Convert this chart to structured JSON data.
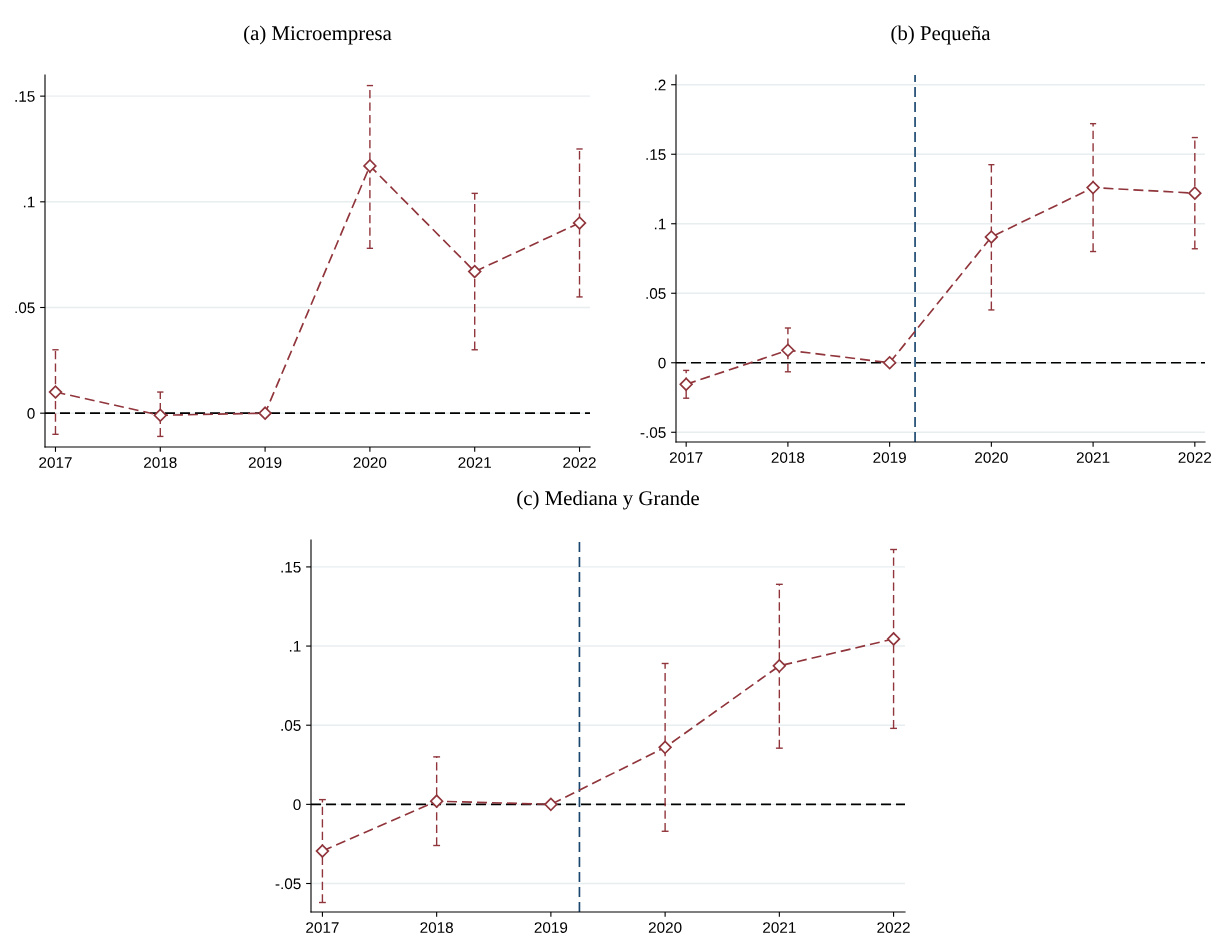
{
  "chart_data": [
    {
      "type": "line",
      "title": "(a) Microempresa",
      "x": [
        2017,
        2018,
        2019,
        2020,
        2021,
        2022
      ],
      "xlim": [
        2016.9,
        2022.1
      ],
      "xticks": [
        2017,
        2018,
        2019,
        2020,
        2021,
        2022
      ],
      "ylim": [
        -0.016,
        0.16
      ],
      "yticks": [
        {
          "value": 0,
          "label": "0"
        },
        {
          "value": 0.05,
          "label": ".05"
        },
        {
          "value": 0.1,
          "label": ".1"
        },
        {
          "value": 0.15,
          "label": ".15"
        }
      ],
      "grid": "y",
      "marker": "diamond",
      "line_style": "dashed",
      "series": [
        {
          "color": "#90353b",
          "values": [
            0.01,
            -0.001,
            0,
            0.117,
            0.067,
            0.09
          ],
          "errors": [
            [
              -0.01,
              0.03
            ],
            [
              -0.011,
              0.01
            ],
            null,
            [
              0.078,
              0.155
            ],
            [
              0.03,
              0.104
            ],
            [
              0.055,
              0.125
            ]
          ]
        }
      ],
      "ref_lines": [
        {
          "axis": "y",
          "value": 0,
          "color": "#000000",
          "line_style": "dashed"
        }
      ]
    },
    {
      "type": "line",
      "title": "(b) Pequeña",
      "x": [
        2017,
        2018,
        2019,
        2020,
        2021,
        2022
      ],
      "xlim": [
        2016.9,
        2022.1
      ],
      "xticks": [
        2017,
        2018,
        2019,
        2020,
        2021,
        2022
      ],
      "ylim": [
        -0.057,
        0.207
      ],
      "yticks": [
        {
          "value": -0.05,
          "label": "-.05"
        },
        {
          "value": 0,
          "label": "0"
        },
        {
          "value": 0.05,
          "label": ".05"
        },
        {
          "value": 0.1,
          "label": ".1"
        },
        {
          "value": 0.15,
          "label": ".15"
        },
        {
          "value": 0.2,
          "label": ".2"
        }
      ],
      "grid": "y",
      "marker": "diamond",
      "line_style": "dashed",
      "series": [
        {
          "color": "#90353b",
          "values": [
            -0.0155,
            0.009,
            0,
            0.0905,
            0.126,
            0.122
          ],
          "errors": [
            [
              -0.0255,
              -0.0055
            ],
            [
              -0.0065,
              0.025
            ],
            null,
            [
              0.038,
              0.1425
            ],
            [
              0.08,
              0.172
            ],
            [
              0.082,
              0.162
            ]
          ]
        }
      ],
      "ref_lines": [
        {
          "axis": "y",
          "value": 0,
          "color": "#000000",
          "line_style": "dashed"
        },
        {
          "axis": "x",
          "value": 2019.25,
          "color": "#1a476f",
          "line_style": "dashed"
        }
      ]
    },
    {
      "type": "line",
      "title": "(c) Mediana y Grande",
      "x": [
        2017,
        2018,
        2019,
        2020,
        2021,
        2022
      ],
      "xlim": [
        2016.9,
        2022.1
      ],
      "xticks": [
        2017,
        2018,
        2019,
        2020,
        2021,
        2022
      ],
      "ylim": [
        -0.068,
        0.167
      ],
      "yticks": [
        {
          "value": -0.05,
          "label": "-.05"
        },
        {
          "value": 0,
          "label": "0"
        },
        {
          "value": 0.05,
          "label": ".05"
        },
        {
          "value": 0.1,
          "label": ".1"
        },
        {
          "value": 0.15,
          "label": ".15"
        }
      ],
      "grid": "y",
      "marker": "diamond",
      "line_style": "dashed",
      "series": [
        {
          "color": "#90353b",
          "values": [
            -0.0295,
            0.002,
            0,
            0.036,
            0.0875,
            0.1045
          ],
          "errors": [
            [
              -0.062,
              0.003
            ],
            [
              -0.026,
              0.03
            ],
            null,
            [
              -0.017,
              0.089
            ],
            [
              0.0355,
              0.139
            ],
            [
              0.048,
              0.161
            ]
          ]
        }
      ],
      "ref_lines": [
        {
          "axis": "y",
          "value": 0,
          "color": "#000000",
          "line_style": "dashed"
        },
        {
          "axis": "x",
          "value": 2019.25,
          "color": "#1a476f",
          "line_style": "dashed"
        }
      ]
    }
  ]
}
